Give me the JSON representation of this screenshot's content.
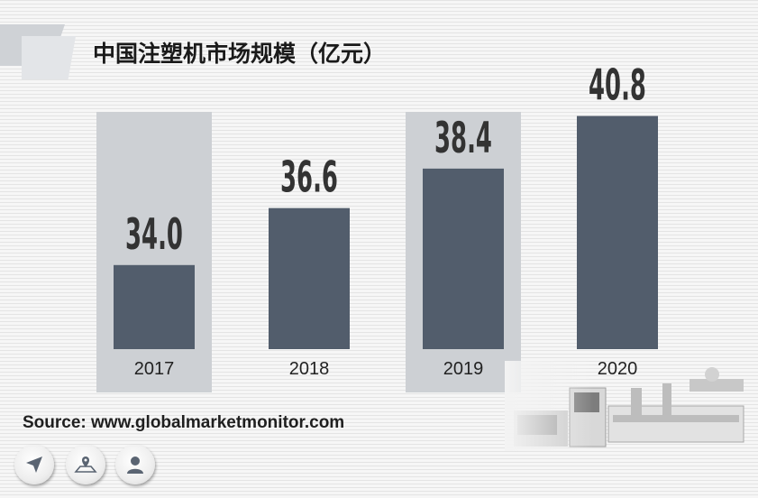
{
  "title": "中国注塑机市场规模（亿元）",
  "source_text": "Source: www.globalmarketmonitor.com",
  "icons": [
    "navigation-arrow-icon",
    "map-pin-icon",
    "user-icon"
  ],
  "colors": {
    "bar": "#525d6c",
    "highlight_panel": "#cdd0d4",
    "value_label": "#333333"
  },
  "chart_data": {
    "type": "bar",
    "title": "中国注塑机市场规模（亿元）",
    "categories": [
      "2017",
      "2018",
      "2019",
      "2020"
    ],
    "values": [
      34.0,
      36.6,
      38.4,
      40.8
    ],
    "value_labels": [
      "34.0",
      "36.6",
      "38.4",
      "40.8"
    ],
    "highlighted_categories": [
      "2017",
      "2019"
    ],
    "xlabel": "",
    "ylabel": "",
    "grid": false,
    "legend": "none"
  }
}
